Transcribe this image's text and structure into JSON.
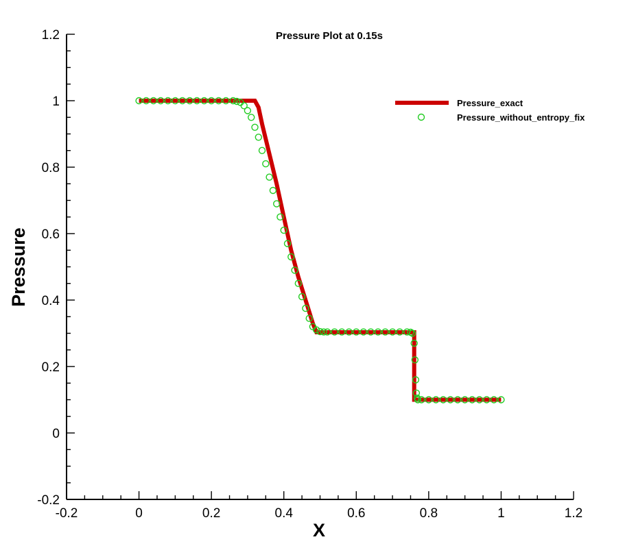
{
  "chart_data": {
    "type": "line",
    "title": "Pressure Plot at 0.15s",
    "xlabel": "X",
    "ylabel": "Pressure",
    "xlim": [
      -0.2,
      1.2
    ],
    "ylim": [
      -0.2,
      1.2
    ],
    "xticks": [
      "-0.2",
      "0",
      "0.2",
      "0.4",
      "0.6",
      "0.8",
      "1",
      "1.2"
    ],
    "yticks": [
      "-0.2",
      "0",
      "0.2",
      "0.4",
      "0.6",
      "0.8",
      "1",
      "1.2"
    ],
    "grid": false,
    "legend_position": "top-right",
    "series": [
      {
        "name": "Pressure_exact",
        "style": "line",
        "color": "#cc0000",
        "x": [
          0,
          0.32,
          0.33,
          0.34,
          0.36,
          0.38,
          0.4,
          0.42,
          0.44,
          0.46,
          0.48,
          0.49,
          0.76,
          0.76,
          1.0
        ],
        "y": [
          1.0,
          1.0,
          0.98,
          0.93,
          0.84,
          0.75,
          0.65,
          0.55,
          0.47,
          0.4,
          0.33,
          0.303,
          0.303,
          0.1,
          0.1
        ]
      },
      {
        "name": "Pressure_without_entropy_fix",
        "style": "markers",
        "marker": "circle-open",
        "color": "#22cc22",
        "x": [
          0.0,
          0.02,
          0.04,
          0.06,
          0.08,
          0.1,
          0.12,
          0.14,
          0.16,
          0.18,
          0.2,
          0.22,
          0.24,
          0.26,
          0.27,
          0.28,
          0.29,
          0.3,
          0.31,
          0.32,
          0.33,
          0.34,
          0.35,
          0.36,
          0.37,
          0.38,
          0.39,
          0.4,
          0.41,
          0.42,
          0.43,
          0.44,
          0.45,
          0.46,
          0.47,
          0.48,
          0.49,
          0.5,
          0.51,
          0.52,
          0.54,
          0.56,
          0.58,
          0.6,
          0.62,
          0.64,
          0.66,
          0.68,
          0.7,
          0.72,
          0.74,
          0.75,
          0.755,
          0.76,
          0.762,
          0.764,
          0.766,
          0.768,
          0.77,
          0.78,
          0.8,
          0.82,
          0.84,
          0.86,
          0.88,
          0.9,
          0.92,
          0.94,
          0.96,
          0.98,
          1.0
        ],
        "y": [
          1.0,
          1.0,
          1.0,
          1.0,
          1.0,
          1.0,
          1.0,
          1.0,
          1.0,
          1.0,
          1.0,
          1.0,
          1.0,
          1.0,
          0.998,
          0.995,
          0.985,
          0.97,
          0.95,
          0.92,
          0.89,
          0.85,
          0.81,
          0.77,
          0.73,
          0.69,
          0.65,
          0.61,
          0.57,
          0.53,
          0.49,
          0.45,
          0.41,
          0.375,
          0.345,
          0.32,
          0.31,
          0.305,
          0.304,
          0.304,
          0.304,
          0.304,
          0.304,
          0.304,
          0.304,
          0.304,
          0.304,
          0.304,
          0.304,
          0.304,
          0.304,
          0.303,
          0.3,
          0.27,
          0.22,
          0.16,
          0.12,
          0.105,
          0.1,
          0.1,
          0.1,
          0.1,
          0.1,
          0.1,
          0.1,
          0.1,
          0.1,
          0.1,
          0.1,
          0.1,
          0.1
        ]
      }
    ]
  }
}
